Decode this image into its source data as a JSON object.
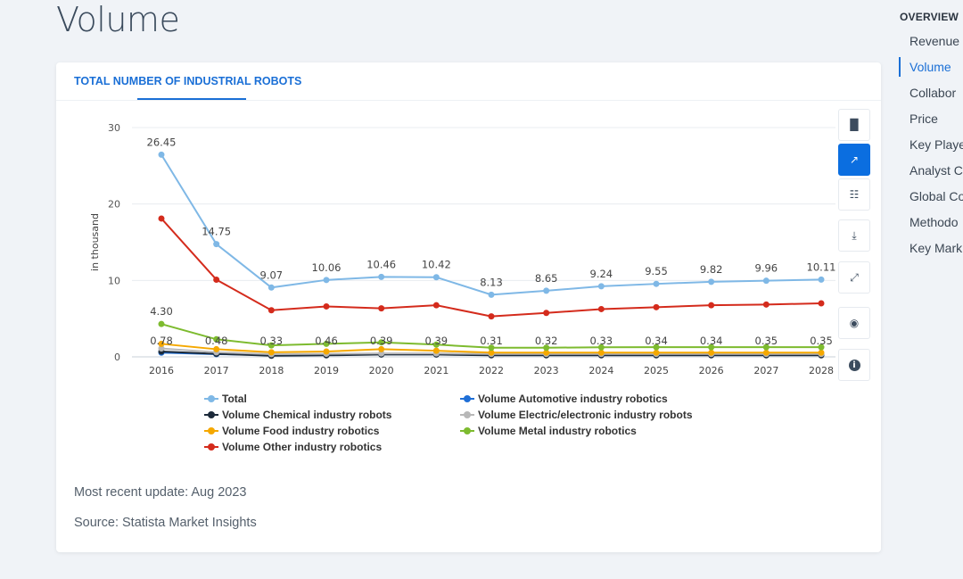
{
  "page": {
    "title": "Volume"
  },
  "card": {
    "tab_label": "TOTAL NUMBER OF INDUSTRIAL ROBOTS",
    "update_text": "Most recent update: Aug 2023",
    "source_text": "Source: Statista Market Insights"
  },
  "toolbar": {
    "items": [
      {
        "name": "bar-chart-icon",
        "glyph": "▐▌",
        "active": false
      },
      {
        "name": "line-chart-icon",
        "glyph": "↗",
        "active": true
      },
      {
        "name": "table-icon",
        "glyph": "☷",
        "active": false
      },
      {
        "name": "download-icon",
        "glyph": "⤓",
        "active": false
      },
      {
        "name": "expand-icon",
        "glyph": "⤢",
        "active": false
      },
      {
        "name": "hide-icon",
        "glyph": "◉",
        "active": false
      },
      {
        "name": "info-icon",
        "glyph": "i",
        "active": false
      }
    ]
  },
  "sidebar": {
    "heading": "OVERVIEW",
    "items": [
      {
        "label": "Revenue",
        "active": false
      },
      {
        "label": "Volume",
        "active": true
      },
      {
        "label": "Collabor",
        "active": false
      },
      {
        "label": "Price",
        "active": false
      },
      {
        "label": "Key Playe",
        "active": false
      },
      {
        "label": "Analyst C",
        "active": false
      },
      {
        "label": "Global Co",
        "active": false
      },
      {
        "label": "Methodo",
        "active": false
      },
      {
        "label": "Key Mark",
        "active": false
      }
    ]
  },
  "chart_data": {
    "type": "line",
    "title": "TOTAL NUMBER OF INDUSTRIAL ROBOTS",
    "xlabel": "",
    "ylabel": "in thousand",
    "ylim": [
      0,
      30
    ],
    "yticks": [
      0,
      10,
      20,
      30
    ],
    "grid": true,
    "legend_position": "bottom",
    "x": [
      "2016",
      "2017",
      "2018",
      "2019",
      "2020",
      "2021",
      "2022",
      "2023",
      "2024",
      "2025",
      "2026",
      "2027",
      "2028"
    ],
    "series": [
      {
        "name": "Total",
        "color": "#7fb8e6",
        "values": [
          26.45,
          14.75,
          9.07,
          10.06,
          10.46,
          10.42,
          8.13,
          8.65,
          9.24,
          9.55,
          9.82,
          9.96,
          10.11
        ],
        "labels": [
          "26.45",
          "14.75",
          "9.07",
          "10.06",
          "10.46",
          "10.42",
          "8.13",
          "8.65",
          "9.24",
          "9.55",
          "9.82",
          "9.96",
          "10.11"
        ]
      },
      {
        "name": "Volume Automotive industry robotics",
        "color": "#1f6fd6",
        "values": [
          0.55,
          0.35,
          0.25,
          0.28,
          0.33,
          0.33,
          0.28,
          0.28,
          0.28,
          0.28,
          0.28,
          0.28,
          0.28
        ]
      },
      {
        "name": "Volume Chemical industry robots",
        "color": "#1c2a3a",
        "values": [
          0.7,
          0.4,
          0.15,
          0.2,
          0.3,
          0.3,
          0.2,
          0.2,
          0.2,
          0.2,
          0.2,
          0.2,
          0.2
        ]
      },
      {
        "name": "Volume Electric/electronic industry robots",
        "color": "#b8b8b8",
        "values": [
          1.1,
          0.6,
          0.35,
          0.4,
          0.45,
          0.45,
          0.38,
          0.38,
          0.38,
          0.38,
          0.38,
          0.38,
          0.38
        ]
      },
      {
        "name": "Volume Food industry robotics",
        "color": "#f5a800",
        "values": [
          1.7,
          1.0,
          0.6,
          0.7,
          1.0,
          0.8,
          0.55,
          0.55,
          0.55,
          0.55,
          0.55,
          0.55,
          0.55
        ]
      },
      {
        "name": "Volume Metal industry robotics",
        "color": "#7dbb2f",
        "values": [
          4.3,
          2.3,
          1.5,
          1.7,
          1.9,
          1.6,
          1.2,
          1.2,
          1.25,
          1.27,
          1.27,
          1.27,
          1.27
        ],
        "labels": [
          "4.30",
          "0.48",
          "0.33",
          "0.46",
          "0.39",
          "0.39",
          "0.31",
          "0.32",
          "0.33",
          "0.34",
          "0.34",
          "0.35",
          "0.35"
        ],
        "label_note": "labels shown on the lower series row"
      },
      {
        "name": "Volume Other industry robotics",
        "color": "#d42b1c",
        "values": [
          18.1,
          10.1,
          6.1,
          6.6,
          6.35,
          6.75,
          5.3,
          5.75,
          6.25,
          6.5,
          6.75,
          6.85,
          7.0
        ]
      }
    ],
    "small_value_labels": [
      "0.78",
      "0.48",
      "0.33",
      "0.46",
      "0.39",
      "0.39",
      "0.31",
      "0.32",
      "0.33",
      "0.34",
      "0.34",
      "0.35",
      "0.35"
    ]
  }
}
